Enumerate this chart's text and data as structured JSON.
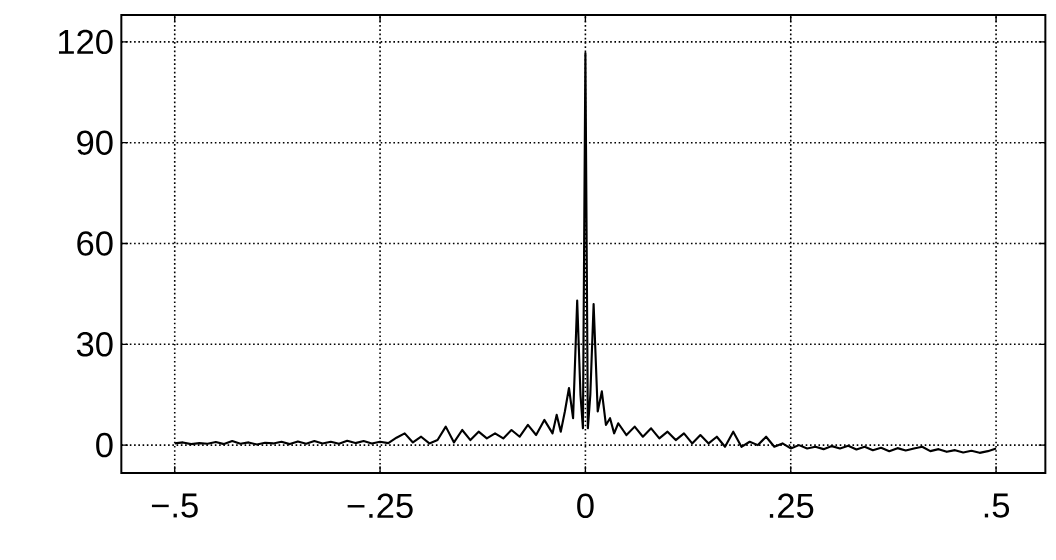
{
  "chart_data": {
    "type": "line",
    "x": [
      -0.5,
      -0.49,
      -0.48,
      -0.47,
      -0.46,
      -0.45,
      -0.44,
      -0.43,
      -0.42,
      -0.41,
      -0.4,
      -0.39,
      -0.38,
      -0.37,
      -0.36,
      -0.35,
      -0.34,
      -0.33,
      -0.32,
      -0.31,
      -0.3,
      -0.29,
      -0.28,
      -0.27,
      -0.26,
      -0.25,
      -0.24,
      -0.23,
      -0.22,
      -0.21,
      -0.2,
      -0.19,
      -0.18,
      -0.17,
      -0.16,
      -0.15,
      -0.14,
      -0.13,
      -0.12,
      -0.11,
      -0.1,
      -0.09,
      -0.08,
      -0.07,
      -0.06,
      -0.05,
      -0.04,
      -0.035,
      -0.03,
      -0.025,
      -0.02,
      -0.015,
      -0.01,
      -0.006,
      -0.003,
      0,
      0.003,
      0.006,
      0.01,
      0.015,
      0.02,
      0.025,
      0.03,
      0.035,
      0.04,
      0.05,
      0.06,
      0.07,
      0.08,
      0.09,
      0.1,
      0.11,
      0.12,
      0.13,
      0.14,
      0.15,
      0.16,
      0.17,
      0.18,
      0.19,
      0.2,
      0.21,
      0.22,
      0.23,
      0.24,
      0.25,
      0.26,
      0.27,
      0.28,
      0.29,
      0.3,
      0.31,
      0.32,
      0.33,
      0.34,
      0.35,
      0.36,
      0.37,
      0.38,
      0.39,
      0.4,
      0.41,
      0.42,
      0.43,
      0.44,
      0.45,
      0.46,
      0.47,
      0.48,
      0.49,
      0.5
    ],
    "series": [
      {
        "color": "#000000",
        "values": [
          0.5,
          0.8,
          0.3,
          0.6,
          0.4,
          0.9,
          0.3,
          1.2,
          0.4,
          0.8,
          0.2,
          0.7,
          0.5,
          1.0,
          0.3,
          1.1,
          0.4,
          1.2,
          0.5,
          1.0,
          0.4,
          1.3,
          0.6,
          1.2,
          0.5,
          1.0,
          0.6,
          2.2,
          3.5,
          0.8,
          2.5,
          0.5,
          1.5,
          5.5,
          0.8,
          4.5,
          1.5,
          4.0,
          2.0,
          3.5,
          2.0,
          4.5,
          2.5,
          6.0,
          3.0,
          7.5,
          3.5,
          9.0,
          4,
          10,
          17,
          8,
          43,
          15,
          5,
          116.7,
          5,
          15,
          42,
          10,
          16,
          6,
          8,
          3.5,
          6.5,
          3,
          5.5,
          2.5,
          5,
          2,
          4,
          1.5,
          3.5,
          0.5,
          3,
          0.5,
          2.5,
          -0.5,
          4.0,
          -0.5,
          1.0,
          0,
          2.5,
          -0.5,
          0.5,
          -1,
          0,
          -1,
          -0.5,
          -1.2,
          -0.3,
          -1,
          -0.2,
          -1.3,
          -0.5,
          -1.5,
          -0.8,
          -1.8,
          -0.9,
          -1.6,
          -1.0,
          -0.5,
          -1.8,
          -1.2,
          -2,
          -1.5,
          -2.2,
          -1.7,
          -2.3,
          -1.8,
          -1
        ]
      }
    ],
    "xlim": [
      -0.565,
      0.56
    ],
    "ylim": [
      -8.3,
      128
    ],
    "xticks": [
      {
        "value": -0.5,
        "label": "−.5"
      },
      {
        "value": -0.25,
        "label": "−.25"
      },
      {
        "value": 0,
        "label": "0"
      },
      {
        "value": 0.25,
        "label": ".25"
      },
      {
        "value": 0.5,
        "label": ".5"
      }
    ],
    "yticks": [
      0,
      30,
      60,
      90,
      120
    ],
    "grid": true
  }
}
